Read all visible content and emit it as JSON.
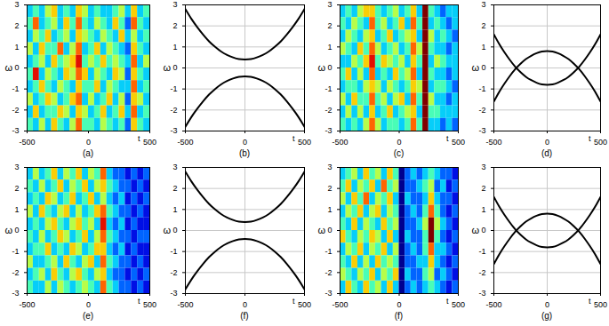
{
  "chart_data": [
    {
      "type": "heatmap",
      "caption": "(a)",
      "xlabel": "t",
      "ylabel": "ω",
      "xlim": [
        -500,
        500
      ],
      "ylim": [
        -3,
        3
      ],
      "xticks": [
        -500,
        0,
        500
      ],
      "yticks": [
        -3,
        -2,
        -1,
        0,
        1,
        2,
        3
      ],
      "grid": false,
      "color_range": [
        0,
        9
      ],
      "z": [
        [
          3,
          4,
          3,
          5,
          6,
          3,
          4,
          3,
          6,
          5,
          3,
          4,
          3,
          3,
          4,
          5,
          3,
          6,
          3,
          4
        ],
        [
          4,
          7,
          3,
          4,
          5,
          3,
          6,
          4,
          7,
          4,
          3,
          5,
          4,
          3,
          6,
          4,
          2,
          7,
          4,
          3
        ],
        [
          3,
          5,
          4,
          6,
          3,
          4,
          5,
          3,
          6,
          5,
          4,
          3,
          5,
          4,
          3,
          6,
          3,
          5,
          3,
          4
        ],
        [
          5,
          3,
          6,
          4,
          4,
          7,
          3,
          5,
          7,
          3,
          4,
          6,
          3,
          5,
          4,
          3,
          2,
          6,
          4,
          3
        ],
        [
          3,
          4,
          5,
          3,
          6,
          4,
          5,
          6,
          8,
          4,
          5,
          4,
          6,
          4,
          5,
          4,
          3,
          7,
          3,
          5
        ],
        [
          4,
          8,
          3,
          5,
          4,
          3,
          6,
          5,
          7,
          6,
          3,
          5,
          4,
          3,
          6,
          5,
          2,
          6,
          4,
          3
        ],
        [
          3,
          4,
          6,
          4,
          3,
          5,
          4,
          3,
          6,
          4,
          4,
          6,
          3,
          5,
          4,
          3,
          3,
          7,
          3,
          4
        ],
        [
          5,
          3,
          4,
          6,
          5,
          3,
          4,
          6,
          7,
          3,
          5,
          3,
          4,
          6,
          3,
          5,
          2,
          6,
          5,
          3
        ],
        [
          3,
          6,
          3,
          4,
          4,
          6,
          5,
          3,
          6,
          5,
          3,
          4,
          6,
          3,
          4,
          6,
          3,
          7,
          3,
          4
        ],
        [
          4,
          3,
          5,
          3,
          6,
          4,
          3,
          5,
          7,
          4,
          4,
          3,
          5,
          4,
          3,
          4,
          2,
          6,
          4,
          3
        ]
      ]
    },
    {
      "type": "line",
      "caption": "(b)",
      "xlabel": "t",
      "ylabel": "ω",
      "xlim": [
        -500,
        500
      ],
      "ylim": [
        -3,
        3
      ],
      "xticks": [
        -500,
        0,
        500
      ],
      "yticks": [
        -3,
        -2,
        -1,
        0,
        1,
        2,
        3
      ],
      "grid": true,
      "x": [
        -500,
        -450,
        -400,
        -350,
        -300,
        -250,
        -200,
        -150,
        -100,
        -50,
        0,
        50,
        100,
        150,
        200,
        250,
        300,
        350,
        400,
        450,
        500
      ],
      "series": [
        {
          "color": "#000000",
          "values": [
            2.8,
            2.34,
            1.94,
            1.58,
            1.26,
            1.0,
            0.78,
            0.62,
            0.5,
            0.42,
            0.4,
            0.42,
            0.5,
            0.62,
            0.78,
            1.0,
            1.26,
            1.58,
            1.94,
            2.34,
            2.8
          ]
        },
        {
          "color": "#000000",
          "values": [
            -2.8,
            -2.34,
            -1.94,
            -1.58,
            -1.26,
            -1.0,
            -0.78,
            -0.62,
            -0.5,
            -0.42,
            -0.4,
            -0.42,
            -0.5,
            -0.62,
            -0.78,
            -1.0,
            -1.26,
            -1.58,
            -1.94,
            -2.34,
            -2.8
          ]
        }
      ]
    },
    {
      "type": "heatmap",
      "caption": "(c)",
      "xlabel": "t",
      "ylabel": "ω",
      "xlim": [
        -500,
        500
      ],
      "ylim": [
        -3,
        3
      ],
      "xticks": [
        -500,
        0,
        500
      ],
      "yticks": [
        -3,
        -2,
        -1,
        0,
        1,
        2,
        3
      ],
      "grid": false,
      "color_range": [
        0,
        9
      ],
      "z": [
        [
          3,
          4,
          3,
          5,
          6,
          6,
          4,
          3,
          4,
          5,
          3,
          4,
          6,
          3,
          9,
          4,
          3,
          2,
          3,
          3
        ],
        [
          4,
          3,
          5,
          4,
          3,
          7,
          4,
          5,
          3,
          4,
          6,
          3,
          7,
          4,
          9,
          3,
          4,
          3,
          2,
          3
        ],
        [
          3,
          5,
          4,
          3,
          5,
          6,
          3,
          4,
          6,
          3,
          4,
          5,
          6,
          3,
          9,
          5,
          3,
          4,
          3,
          2
        ],
        [
          5,
          4,
          3,
          6,
          4,
          7,
          5,
          3,
          4,
          5,
          3,
          4,
          7,
          5,
          9,
          4,
          3,
          3,
          2,
          3
        ],
        [
          3,
          3,
          5,
          4,
          6,
          8,
          4,
          6,
          5,
          4,
          5,
          3,
          6,
          4,
          9,
          3,
          5,
          4,
          3,
          3
        ],
        [
          4,
          6,
          3,
          5,
          3,
          7,
          3,
          4,
          3,
          6,
          4,
          5,
          7,
          3,
          9,
          4,
          3,
          3,
          2,
          3
        ],
        [
          3,
          4,
          4,
          3,
          5,
          6,
          5,
          3,
          5,
          4,
          3,
          4,
          6,
          5,
          9,
          3,
          4,
          4,
          3,
          2
        ],
        [
          5,
          3,
          6,
          4,
          4,
          7,
          4,
          5,
          3,
          5,
          6,
          3,
          7,
          4,
          9,
          5,
          3,
          3,
          2,
          3
        ],
        [
          3,
          5,
          3,
          5,
          3,
          6,
          3,
          4,
          6,
          3,
          4,
          5,
          6,
          3,
          9,
          4,
          4,
          3,
          3,
          3
        ],
        [
          4,
          3,
          4,
          3,
          5,
          7,
          5,
          3,
          4,
          4,
          3,
          4,
          7,
          4,
          9,
          3,
          3,
          2,
          3,
          2
        ]
      ]
    },
    {
      "type": "line",
      "caption": "(d)",
      "xlabel": "t",
      "ylabel": "ω",
      "xlim": [
        -500,
        500
      ],
      "ylim": [
        -3,
        3
      ],
      "xticks": [
        -500,
        0,
        500
      ],
      "yticks": [
        -3,
        -2,
        -1,
        0,
        1,
        2,
        3
      ],
      "grid": true,
      "x": [
        -500,
        -450,
        -400,
        -350,
        -300,
        -250,
        -200,
        -150,
        -100,
        -50,
        0,
        50,
        100,
        150,
        200,
        250,
        300,
        350,
        400,
        450,
        500
      ],
      "series": [
        {
          "color": "#000000",
          "values": [
            1.6,
            1.14,
            0.74,
            0.38,
            0.06,
            -0.2,
            -0.42,
            -0.58,
            -0.7,
            -0.78,
            -0.8,
            -0.78,
            -0.7,
            -0.58,
            -0.42,
            -0.2,
            0.06,
            0.38,
            0.74,
            1.14,
            1.6
          ]
        },
        {
          "color": "#000000",
          "values": [
            -1.6,
            -1.14,
            -0.74,
            -0.38,
            -0.06,
            0.2,
            0.42,
            0.58,
            0.7,
            0.78,
            0.8,
            0.78,
            0.7,
            0.58,
            0.42,
            0.2,
            -0.06,
            -0.38,
            -0.74,
            -1.14,
            -1.6
          ]
        }
      ]
    },
    {
      "type": "heatmap",
      "caption": "(e)",
      "xlabel": "t",
      "ylabel": "ω",
      "xlim": [
        -500,
        500
      ],
      "ylim": [
        -3,
        3
      ],
      "xticks": [
        -500,
        0,
        500
      ],
      "yticks": [
        -3,
        -2,
        -1,
        0,
        1,
        2,
        3
      ],
      "grid": false,
      "color_range": [
        0,
        9
      ],
      "z": [
        [
          3,
          5,
          3,
          4,
          6,
          3,
          5,
          4,
          6,
          3,
          5,
          4,
          7,
          3,
          2,
          2,
          1,
          2,
          1,
          2
        ],
        [
          4,
          3,
          5,
          3,
          4,
          6,
          3,
          5,
          4,
          6,
          3,
          5,
          6,
          4,
          3,
          2,
          2,
          1,
          2,
          1
        ],
        [
          3,
          4,
          3,
          6,
          5,
          3,
          4,
          6,
          3,
          4,
          6,
          3,
          5,
          3,
          2,
          3,
          1,
          2,
          1,
          2
        ],
        [
          5,
          3,
          6,
          4,
          3,
          5,
          6,
          3,
          5,
          3,
          4,
          6,
          7,
          4,
          3,
          2,
          2,
          1,
          2,
          1
        ],
        [
          3,
          4,
          3,
          5,
          6,
          4,
          3,
          5,
          6,
          4,
          5,
          3,
          8,
          3,
          2,
          3,
          1,
          2,
          1,
          1
        ],
        [
          4,
          3,
          5,
          3,
          4,
          6,
          5,
          3,
          4,
          6,
          3,
          5,
          7,
          4,
          3,
          2,
          2,
          1,
          2,
          2
        ],
        [
          3,
          4,
          4,
          6,
          3,
          4,
          3,
          6,
          5,
          3,
          4,
          6,
          6,
          3,
          2,
          3,
          1,
          2,
          1,
          1
        ],
        [
          5,
          3,
          3,
          4,
          5,
          3,
          6,
          4,
          3,
          5,
          6,
          3,
          7,
          4,
          3,
          2,
          2,
          1,
          2,
          1
        ],
        [
          3,
          4,
          5,
          3,
          6,
          4,
          3,
          5,
          6,
          4,
          3,
          5,
          6,
          3,
          2,
          2,
          1,
          2,
          1,
          2
        ],
        [
          4,
          3,
          3,
          5,
          3,
          5,
          4,
          3,
          4,
          5,
          4,
          3,
          7,
          4,
          3,
          2,
          2,
          1,
          2,
          1
        ]
      ]
    },
    {
      "type": "line",
      "caption": "(f)",
      "xlabel": "t",
      "ylabel": "ω",
      "xlim": [
        -500,
        500
      ],
      "ylim": [
        -3,
        3
      ],
      "xticks": [
        -500,
        0,
        500
      ],
      "yticks": [
        -3,
        -2,
        -1,
        0,
        1,
        2,
        3
      ],
      "grid": true,
      "x": [
        -500,
        -450,
        -400,
        -350,
        -300,
        -250,
        -200,
        -150,
        -100,
        -50,
        0,
        50,
        100,
        150,
        200,
        250,
        300,
        350,
        400,
        450,
        500
      ],
      "series": [
        {
          "color": "#000000",
          "values": [
            2.8,
            2.34,
            1.94,
            1.58,
            1.26,
            1.0,
            0.78,
            0.62,
            0.5,
            0.42,
            0.4,
            0.42,
            0.5,
            0.62,
            0.78,
            1.0,
            1.26,
            1.58,
            1.94,
            2.34,
            2.8
          ]
        },
        {
          "color": "#000000",
          "values": [
            -2.8,
            -2.34,
            -1.94,
            -1.58,
            -1.26,
            -1.0,
            -0.78,
            -0.62,
            -0.5,
            -0.42,
            -0.4,
            -0.42,
            -0.5,
            -0.62,
            -0.78,
            -1.0,
            -1.26,
            -1.58,
            -1.94,
            -2.34,
            -2.8
          ]
        }
      ]
    },
    {
      "type": "heatmap",
      "caption": "(f)",
      "xlabel": "t",
      "ylabel": "ω",
      "xlim": [
        -500,
        500
      ],
      "ylim": [
        -3,
        3
      ],
      "xticks": [
        -500,
        0,
        500
      ],
      "yticks": [
        -3,
        -2,
        -1,
        0,
        1,
        2,
        3
      ],
      "grid": false,
      "color_range": [
        0,
        9
      ],
      "z": [
        [
          3,
          4,
          5,
          3,
          6,
          4,
          5,
          3,
          6,
          4,
          0,
          2,
          3,
          2,
          3,
          4,
          3,
          2,
          2,
          1
        ],
        [
          4,
          6,
          3,
          5,
          4,
          6,
          3,
          7,
          4,
          5,
          0,
          2,
          2,
          3,
          4,
          5,
          2,
          3,
          1,
          2
        ],
        [
          5,
          3,
          6,
          4,
          7,
          3,
          5,
          4,
          6,
          3,
          0,
          3,
          2,
          2,
          3,
          6,
          3,
          2,
          2,
          1
        ],
        [
          3,
          5,
          4,
          6,
          3,
          5,
          6,
          3,
          5,
          4,
          0,
          2,
          3,
          2,
          4,
          7,
          4,
          2,
          1,
          2
        ],
        [
          4,
          3,
          6,
          3,
          5,
          4,
          3,
          6,
          4,
          5,
          0,
          2,
          2,
          3,
          5,
          9,
          5,
          3,
          2,
          1
        ],
        [
          6,
          4,
          3,
          5,
          4,
          6,
          5,
          3,
          6,
          3,
          0,
          3,
          2,
          2,
          4,
          9,
          4,
          2,
          1,
          2
        ],
        [
          3,
          5,
          4,
          6,
          3,
          5,
          4,
          6,
          3,
          5,
          0,
          2,
          3,
          2,
          4,
          7,
          3,
          3,
          2,
          1
        ],
        [
          4,
          3,
          6,
          3,
          5,
          3,
          6,
          4,
          5,
          4,
          0,
          2,
          2,
          3,
          3,
          6,
          3,
          2,
          1,
          2
        ],
        [
          5,
          4,
          3,
          5,
          4,
          6,
          3,
          5,
          4,
          6,
          0,
          3,
          2,
          2,
          4,
          5,
          2,
          3,
          2,
          1
        ],
        [
          3,
          6,
          4,
          3,
          6,
          4,
          5,
          3,
          6,
          3,
          0,
          2,
          3,
          2,
          3,
          4,
          3,
          2,
          1,
          2
        ]
      ]
    },
    {
      "type": "line",
      "caption": "(g)",
      "xlabel": "t",
      "ylabel": "ω",
      "xlim": [
        -500,
        500
      ],
      "ylim": [
        -3,
        3
      ],
      "xticks": [
        -500,
        0,
        500
      ],
      "yticks": [
        -3,
        -2,
        -1,
        0,
        1,
        2,
        3
      ],
      "grid": true,
      "x": [
        -500,
        -450,
        -400,
        -350,
        -300,
        -250,
        -200,
        -150,
        -100,
        -50,
        0,
        50,
        100,
        150,
        200,
        250,
        300,
        350,
        400,
        450,
        500
      ],
      "series": [
        {
          "color": "#000000",
          "values": [
            1.6,
            1.14,
            0.74,
            0.38,
            0.06,
            -0.2,
            -0.42,
            -0.58,
            -0.7,
            -0.78,
            -0.8,
            -0.78,
            -0.7,
            -0.58,
            -0.42,
            -0.2,
            0.06,
            0.38,
            0.74,
            1.14,
            1.6
          ]
        },
        {
          "color": "#000000",
          "values": [
            -1.6,
            -1.14,
            -0.74,
            -0.38,
            -0.06,
            0.2,
            0.42,
            0.58,
            0.7,
            0.78,
            0.8,
            0.78,
            0.7,
            0.58,
            0.42,
            0.2,
            -0.06,
            -0.38,
            -0.74,
            -1.14,
            -1.6
          ]
        }
      ]
    }
  ]
}
